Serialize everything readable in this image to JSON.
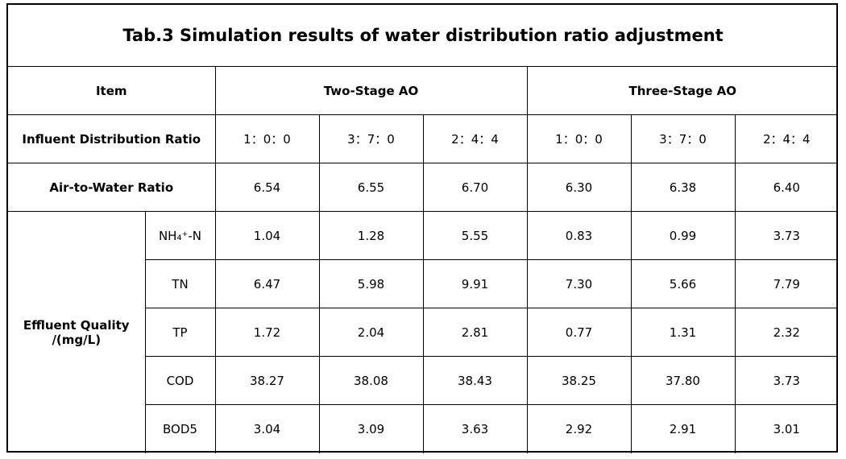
{
  "table": {
    "title": "Tab.3 Simulation results of water distribution ratio adjustment",
    "header": {
      "item": "Item",
      "groups": [
        "Two-Stage AO",
        "Three-Stage AO"
      ]
    },
    "ratio_row": {
      "label": "Influent Distribution Ratio",
      "values": [
        "1：0：0",
        "3：7：0",
        "2：4：4",
        "1：0：0",
        "3：7：0",
        "2：4：4"
      ]
    },
    "air_row": {
      "label": "Air-to-Water Ratio",
      "values": [
        "6.54",
        "6.55",
        "6.70",
        "6.30",
        "6.38",
        "6.40"
      ]
    },
    "effluent": {
      "label_line1": "Effluent Quality",
      "label_line2": "/(mg/L)",
      "rows": [
        {
          "param": "NH₄⁺-N",
          "values": [
            "1.04",
            "1.28",
            "5.55",
            "0.83",
            "0.99",
            "3.73"
          ]
        },
        {
          "param": "TN",
          "values": [
            "6.47",
            "5.98",
            "9.91",
            "7.30",
            "5.66",
            "7.79"
          ]
        },
        {
          "param": "TP",
          "values": [
            "1.72",
            "2.04",
            "2.81",
            "0.77",
            "1.31",
            "2.32"
          ]
        },
        {
          "param": "COD",
          "values": [
            "38.27",
            "38.08",
            "38.43",
            "38.25",
            "37.80",
            "3.73"
          ]
        },
        {
          "param": "BOD5",
          "values": [
            "3.04",
            "3.09",
            "3.63",
            "2.92",
            "2.91",
            "3.01"
          ]
        }
      ]
    }
  }
}
